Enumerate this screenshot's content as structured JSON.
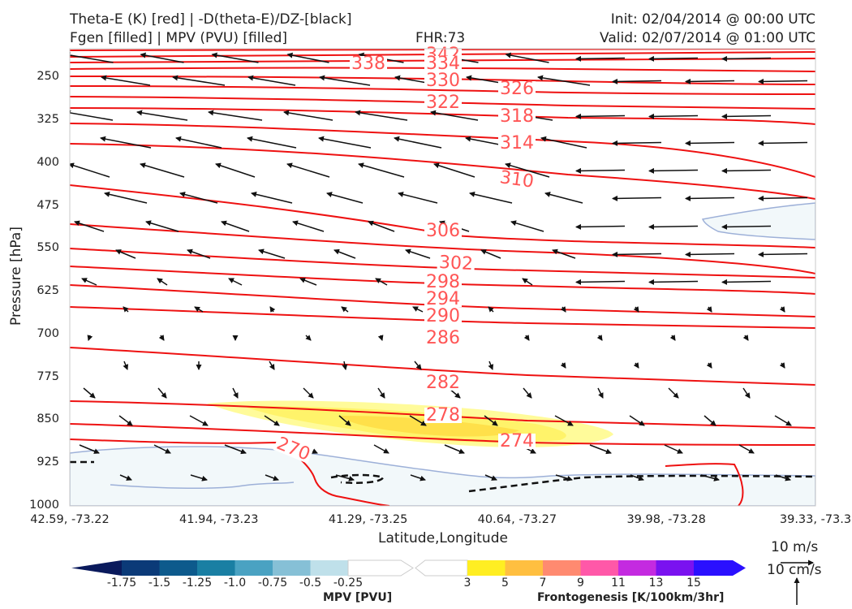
{
  "header": {
    "line1_left": "Theta-E (K) [red] | -D(theta-E)/DZ-[black]",
    "line2_left": "Fgen [filled] | MPV (PVU) [filled]",
    "fhr": "FHR:73",
    "init": "Init: 02/04/2014 @ 00:00 UTC",
    "valid": "Valid: 02/07/2014 @ 01:00 UTC"
  },
  "axes": {
    "ylabel": "Pressure [hPa]",
    "xlabel": "Latitude,Longitude",
    "yticks": [
      "250",
      "325",
      "400",
      "475",
      "550",
      "625",
      "700",
      "775",
      "850",
      "925",
      "1000"
    ],
    "xticks": [
      "42.59, -73.22",
      "41.94, -73.23",
      "41.29, -73.25",
      "40.64, -73.27",
      "39.98, -73.28",
      "39.33, -73.3"
    ]
  },
  "colorbars": {
    "mpv": {
      "title": "MPV [PVU]",
      "labels": [
        "-1.75",
        "-1.5",
        "-1.25",
        "-1.0",
        "-0.75",
        "-0.5",
        "-0.25"
      ],
      "colors": [
        "#0a1a5c",
        "#0b3a78",
        "#0d5a8c",
        "#1a7fa3",
        "#4aa2c2",
        "#86c0d6",
        "#bfe0ea",
        "#ffffff"
      ]
    },
    "fgen": {
      "title": "Frontogenesis [K/100km/3hr]",
      "labels": [
        "3",
        "5",
        "7",
        "9",
        "11",
        "13",
        "15"
      ],
      "colors": [
        "#ffffff",
        "#ffee22",
        "#ffbf40",
        "#ff8a70",
        "#ff58a8",
        "#c42ae0",
        "#7a12f0",
        "#2a10ff"
      ]
    }
  },
  "reference": {
    "wind": "10 m/s",
    "vertical": "10 cm/s"
  },
  "chart_data": {
    "type": "contour-cross-section",
    "ylim": [
      200,
      1000
    ],
    "y_log": false,
    "contours_theta_e": [
      {
        "value": 342,
        "label": "342"
      },
      {
        "value": 338,
        "label": "338"
      },
      {
        "value": 334,
        "label": "334"
      },
      {
        "value": 330,
        "label": "330"
      },
      {
        "value": 326,
        "label": "326"
      },
      {
        "value": 322,
        "label": "322"
      },
      {
        "value": 318,
        "label": "318"
      },
      {
        "value": 314,
        "label": "314"
      },
      {
        "value": 310,
        "label": "310"
      },
      {
        "value": 306,
        "label": "306"
      },
      {
        "value": 302,
        "label": "302"
      },
      {
        "value": 298,
        "label": "298"
      },
      {
        "value": 294,
        "label": "294"
      },
      {
        "value": 290,
        "label": "290"
      },
      {
        "value": 286,
        "label": "286"
      },
      {
        "value": 282,
        "label": "282"
      },
      {
        "value": 278,
        "label": "278"
      },
      {
        "value": 274,
        "label": "274"
      },
      {
        "value": 270,
        "label": "270"
      }
    ],
    "colors": {
      "theta_e": "#ee1111",
      "theta_e_label": "#ff5555",
      "mpv_edge": "#9db0d8",
      "mpv_fill": "#f2f8fa",
      "arrows": "#111111"
    }
  }
}
